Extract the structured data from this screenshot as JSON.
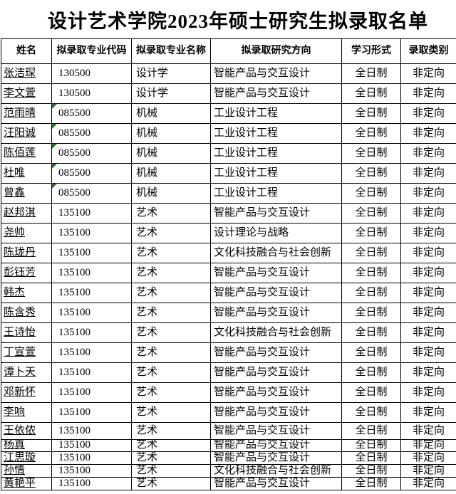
{
  "title": "设计艺术学院2023年硕士研究生拟录取名单",
  "colors": {
    "border": "#000000",
    "text": "#000000",
    "background": "#ffffff",
    "note_triangle_green": "#217821"
  },
  "table": {
    "columns": [
      {
        "key": "name",
        "label": "姓名"
      },
      {
        "key": "code",
        "label": "拟录取专业代码"
      },
      {
        "key": "major",
        "label": "拟录取专业名称"
      },
      {
        "key": "direction",
        "label": "拟录取研究方向"
      },
      {
        "key": "mode",
        "label": "学习形式"
      },
      {
        "key": "category",
        "label": "录取类别"
      }
    ],
    "rows": [
      {
        "name": "张洁琛",
        "code": "130500",
        "major": "设计学",
        "direction": "智能产品与交互设计",
        "mode": "全日制",
        "category": "非定向",
        "has_note_triangle": false
      },
      {
        "name": "李文萱",
        "code": "130500",
        "major": "设计学",
        "direction": "智能产品与交互设计",
        "mode": "全日制",
        "category": "非定向",
        "has_note_triangle": false
      },
      {
        "name": "范雨晴",
        "code": "085500",
        "major": "机械",
        "direction": "工业设计工程",
        "mode": "全日制",
        "category": "非定向",
        "has_note_triangle": true
      },
      {
        "name": "汪阳诚",
        "code": "085500",
        "major": "机械",
        "direction": "工业设计工程",
        "mode": "全日制",
        "category": "非定向",
        "has_note_triangle": true
      },
      {
        "name": "陈佰莲",
        "code": "085500",
        "major": "机械",
        "direction": "工业设计工程",
        "mode": "全日制",
        "category": "非定向",
        "has_note_triangle": true
      },
      {
        "name": "杜唯",
        "code": "085500",
        "major": "机械",
        "direction": "工业设计工程",
        "mode": "全日制",
        "category": "非定向",
        "has_note_triangle": true
      },
      {
        "name": "曾鑫",
        "code": "085500",
        "major": "机械",
        "direction": "工业设计工程",
        "mode": "全日制",
        "category": "非定向",
        "has_note_triangle": true
      },
      {
        "name": "赵邦淇",
        "code": "135100",
        "major": "艺术",
        "direction": "智能产品与交互设计",
        "mode": "全日制",
        "category": "非定向",
        "has_note_triangle": false
      },
      {
        "name": "尧帅",
        "code": "135100",
        "major": "艺术",
        "direction": "设计理论与战略",
        "mode": "全日制",
        "category": "非定向",
        "has_note_triangle": false
      },
      {
        "name": "陈珑丹",
        "code": "135100",
        "major": "艺术",
        "direction": "文化科技融合与社会创新",
        "mode": "全日制",
        "category": "非定向",
        "has_note_triangle": false
      },
      {
        "name": "彭钰芳",
        "code": "135100",
        "major": "艺术",
        "direction": "智能产品与交互设计",
        "mode": "全日制",
        "category": "非定向",
        "has_note_triangle": false
      },
      {
        "name": "韩杰",
        "code": "135100",
        "major": "艺术",
        "direction": "智能产品与交互设计",
        "mode": "全日制",
        "category": "非定向",
        "has_note_triangle": false
      },
      {
        "name": "陈含秀",
        "code": "135100",
        "major": "艺术",
        "direction": "智能产品与交互设计",
        "mode": "全日制",
        "category": "非定向",
        "has_note_triangle": false
      },
      {
        "name": "王诗怡",
        "code": "135100",
        "major": "艺术",
        "direction": "文化科技融合与社会创新",
        "mode": "全日制",
        "category": "非定向",
        "has_note_triangle": false
      },
      {
        "name": "丁宣萱",
        "code": "135100",
        "major": "艺术",
        "direction": "智能产品与交互设计",
        "mode": "全日制",
        "category": "非定向",
        "has_note_triangle": false
      },
      {
        "name": "谭卜天",
        "code": "135100",
        "major": "艺术",
        "direction": "智能产品与交互设计",
        "mode": "全日制",
        "category": "非定向",
        "has_note_triangle": false
      },
      {
        "name": "邓新怀",
        "code": "135100",
        "major": "艺术",
        "direction": "智能产品与交互设计",
        "mode": "全日制",
        "category": "非定向",
        "has_note_triangle": false
      },
      {
        "name": "李响",
        "code": "135100",
        "major": "艺术",
        "direction": "智能产品与交互设计",
        "mode": "全日制",
        "category": "非定向",
        "has_note_triangle": false
      },
      {
        "name": "王依侬",
        "code": "135100",
        "major": "艺术",
        "direction": "智能产品与交互设计",
        "mode": "全日制",
        "category": "非定向",
        "has_note_triangle": false
      },
      {
        "name": "杨真",
        "code": "135100",
        "major": "艺术",
        "direction": "智能产品与交互设计",
        "mode": "全日制",
        "category": "非定向",
        "has_note_triangle": false
      },
      {
        "name": "江思璇",
        "code": "135100",
        "major": "艺术",
        "direction": "智能产品与交互设计",
        "mode": "全日制",
        "category": "非定向",
        "has_note_triangle": false
      },
      {
        "name": "孙情",
        "code": "135100",
        "major": "艺术",
        "direction": "文化科技融合与社会创新",
        "mode": "全日制",
        "category": "非定向",
        "has_note_triangle": false
      },
      {
        "name": "黄艳平",
        "code": "135100",
        "major": "艺术",
        "direction": "智能产品与交互设计",
        "mode": "全日制",
        "category": "非定向",
        "has_note_triangle": false
      }
    ]
  }
}
